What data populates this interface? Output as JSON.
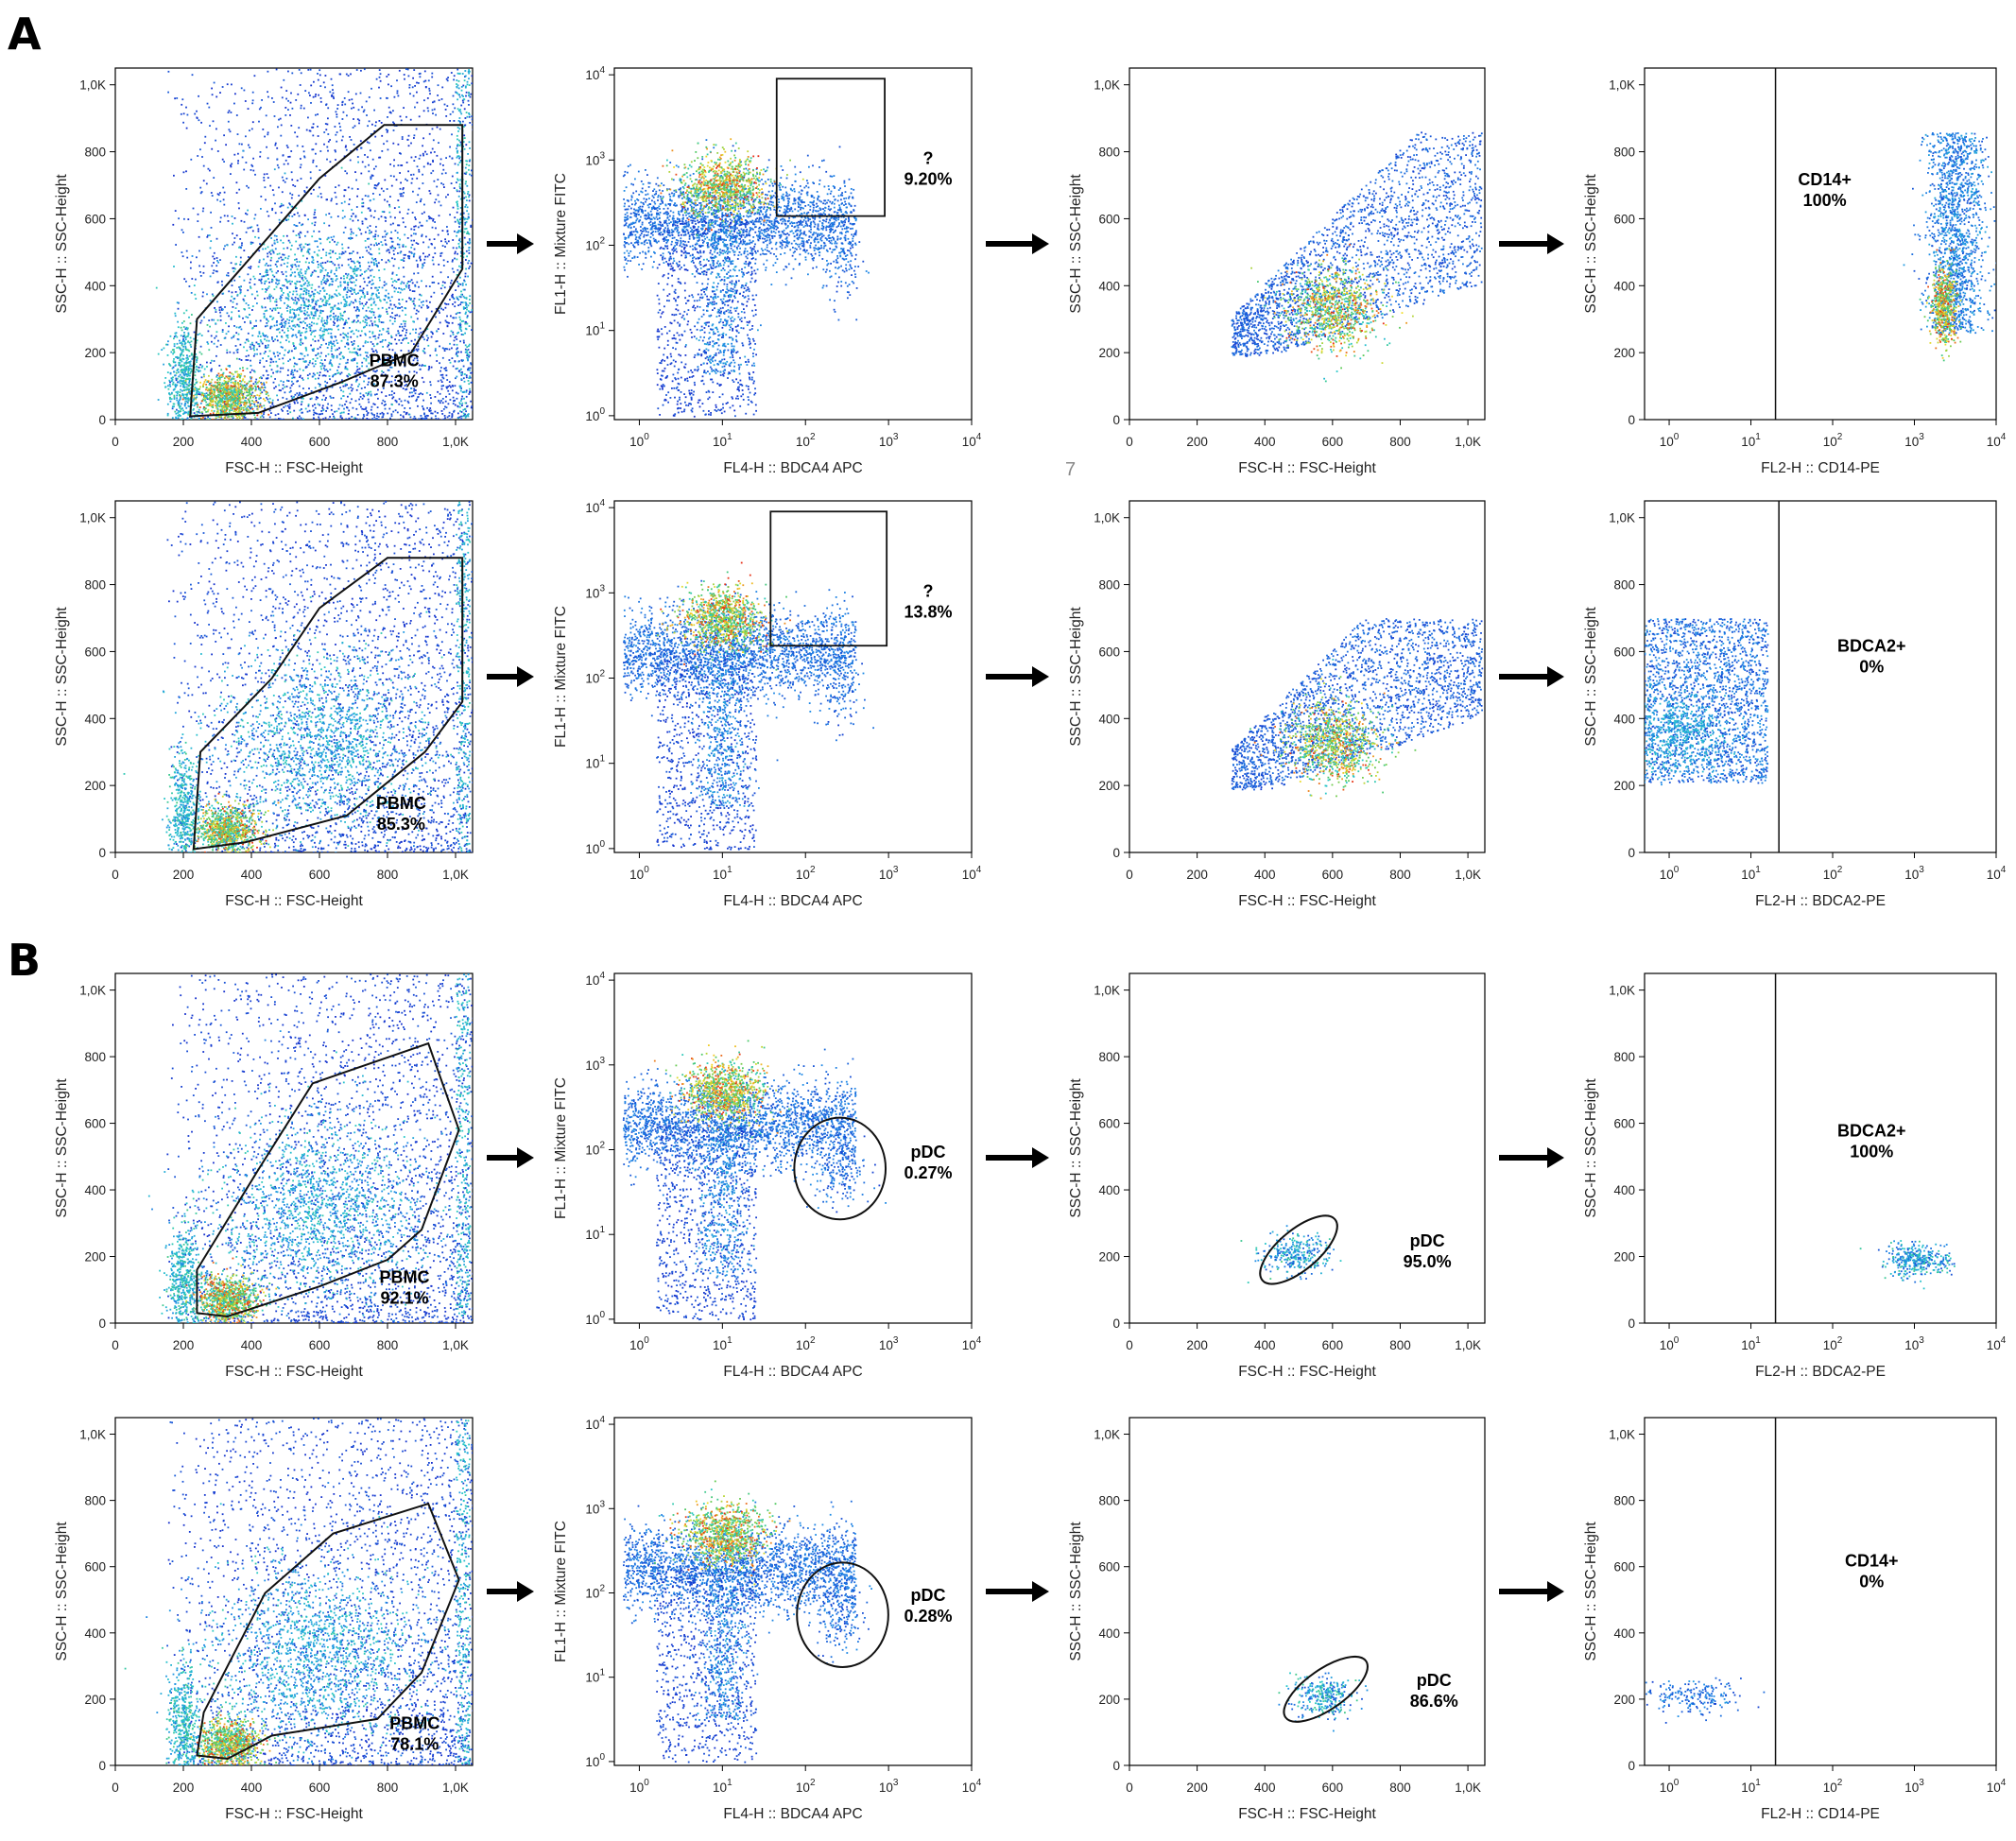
{
  "figure": {
    "panel_labels": [
      "A",
      "B"
    ],
    "page_number": "7"
  },
  "chart_data": [
    {
      "id": "A1-1",
      "type": "scatter",
      "subtype": "flow-density",
      "xscale": "linear",
      "yscale": "linear",
      "xlim": [
        0,
        1050
      ],
      "ylim": [
        0,
        1050
      ],
      "xticks": [
        "0",
        "200",
        "400",
        "600",
        "800",
        "1,0K"
      ],
      "yticks": [
        "0",
        "200",
        "400",
        "600",
        "800",
        "1,0K"
      ],
      "xlabel": "FSC-H :: FSC-Height",
      "ylabel": "SSC-H :: SSC-Height",
      "gate": {
        "shape": "polygon",
        "points": [
          [
            220,
            10
          ],
          [
            240,
            300
          ],
          [
            600,
            720
          ],
          [
            790,
            880
          ],
          [
            1020,
            880
          ],
          [
            1020,
            450
          ],
          [
            870,
            200
          ],
          [
            660,
            110
          ],
          [
            420,
            20
          ]
        ]
      },
      "annotation": [
        "PBMC",
        "87.3%"
      ],
      "annotation_at": [
        820,
        160
      ]
    },
    {
      "id": "A1-2",
      "type": "scatter",
      "subtype": "flow-density",
      "xscale": "log",
      "yscale": "log",
      "xlim": [
        0.5,
        10000
      ],
      "ylim": [
        0.9,
        12000
      ],
      "xticks": [
        "10^0",
        "10^1",
        "10^2",
        "10^3",
        "10^4"
      ],
      "yticks": [
        "10^0",
        "10^1",
        "10^2",
        "10^3",
        "10^4"
      ],
      "xlabel": "FL4-H :: BDCA4 APC",
      "ylabel": "FL1-H :: Mixture FITC",
      "gate": {
        "shape": "rectangle",
        "x": [
          45,
          900
        ],
        "y": [
          220,
          9000
        ]
      },
      "annotation": [
        "?",
        "9.20%"
      ],
      "annotation_at": [
        3000,
        900
      ]
    },
    {
      "id": "A1-3",
      "type": "scatter",
      "subtype": "flow-density",
      "xscale": "linear",
      "yscale": "linear",
      "xlim": [
        0,
        1050
      ],
      "ylim": [
        0,
        1050
      ],
      "xticks": [
        "0",
        "200",
        "400",
        "600",
        "800",
        "1,0K"
      ],
      "yticks": [
        "0",
        "200",
        "400",
        "600",
        "800",
        "1,0K"
      ],
      "xlabel": "FSC-H :: FSC-Height",
      "ylabel": "SSC-H :: SSC-Height"
    },
    {
      "id": "A1-4",
      "type": "scatter",
      "subtype": "flow-density",
      "xscale": "log",
      "yscale": "linear",
      "xlim": [
        0.5,
        10000
      ],
      "ylim": [
        0,
        1050
      ],
      "xticks": [
        "10^0",
        "10^1",
        "10^2",
        "10^3",
        "10^4"
      ],
      "yticks": [
        "0",
        "200",
        "400",
        "600",
        "800",
        "1,0K"
      ],
      "xlabel": "FL2-H :: CD14-PE",
      "ylabel": "SSC-H :: SSC-Height",
      "gate": {
        "shape": "vertical-line",
        "x": 20
      },
      "annotation": [
        "CD14+",
        "100%"
      ],
      "annotation_at": [
        80,
        700
      ]
    },
    {
      "id": "A2-1",
      "type": "scatter",
      "subtype": "flow-density",
      "xscale": "linear",
      "yscale": "linear",
      "xlim": [
        0,
        1050
      ],
      "ylim": [
        0,
        1050
      ],
      "xticks": [
        "0",
        "200",
        "400",
        "600",
        "800",
        "1,0K"
      ],
      "yticks": [
        "0",
        "200",
        "400",
        "600",
        "800",
        "1,0K"
      ],
      "xlabel": "FSC-H :: FSC-Height",
      "ylabel": "SSC-H :: SSC-Height",
      "gate": {
        "shape": "polygon",
        "points": [
          [
            230,
            10
          ],
          [
            250,
            300
          ],
          [
            460,
            520
          ],
          [
            600,
            730
          ],
          [
            800,
            880
          ],
          [
            1020,
            880
          ],
          [
            1020,
            450
          ],
          [
            910,
            300
          ],
          [
            680,
            110
          ],
          [
            380,
            30
          ]
        ]
      },
      "annotation": [
        "PBMC",
        "85.3%"
      ],
      "annotation_at": [
        840,
        130
      ]
    },
    {
      "id": "A2-2",
      "type": "scatter",
      "subtype": "flow-density",
      "xscale": "log",
      "yscale": "log",
      "xlim": [
        0.5,
        10000
      ],
      "ylim": [
        0.9,
        12000
      ],
      "xticks": [
        "10^0",
        "10^1",
        "10^2",
        "10^3",
        "10^4"
      ],
      "yticks": [
        "10^0",
        "10^1",
        "10^2",
        "10^3",
        "10^4"
      ],
      "xlabel": "FL4-H :: BDCA4 APC",
      "ylabel": "FL1-H :: Mixture FITC",
      "gate": {
        "shape": "rectangle",
        "x": [
          38,
          950
        ],
        "y": [
          240,
          9000
        ]
      },
      "annotation": [
        "?",
        "13.8%"
      ],
      "annotation_at": [
        3000,
        900
      ]
    },
    {
      "id": "A2-3",
      "type": "scatter",
      "subtype": "flow-density",
      "xscale": "linear",
      "yscale": "linear",
      "xlim": [
        0,
        1050
      ],
      "ylim": [
        0,
        1050
      ],
      "xticks": [
        "0",
        "200",
        "400",
        "600",
        "800",
        "1,0K"
      ],
      "yticks": [
        "0",
        "200",
        "400",
        "600",
        "800",
        "1,0K"
      ],
      "xlabel": "FSC-H :: FSC-Height",
      "ylabel": "SSC-H :: SSC-Height"
    },
    {
      "id": "A2-4",
      "type": "scatter",
      "subtype": "flow-density",
      "xscale": "log",
      "yscale": "linear",
      "xlim": [
        0.5,
        10000
      ],
      "ylim": [
        0,
        1050
      ],
      "xticks": [
        "10^0",
        "10^1",
        "10^2",
        "10^3",
        "10^4"
      ],
      "yticks": [
        "0",
        "200",
        "400",
        "600",
        "800",
        "1,0K"
      ],
      "xlabel": "FL2-H :: BDCA2-PE",
      "ylabel": "SSC-H :: SSC-Height",
      "gate": {
        "shape": "vertical-line",
        "x": 22
      },
      "annotation": [
        "BDCA2+",
        "0%"
      ],
      "annotation_at": [
        300,
        600
      ]
    },
    {
      "id": "B1-1",
      "type": "scatter",
      "subtype": "flow-density",
      "xscale": "linear",
      "yscale": "linear",
      "xlim": [
        0,
        1050
      ],
      "ylim": [
        0,
        1050
      ],
      "xticks": [
        "0",
        "200",
        "400",
        "600",
        "800",
        "1,0K"
      ],
      "yticks": [
        "0",
        "200",
        "400",
        "600",
        "800",
        "1,0K"
      ],
      "xlabel": "FSC-H :: FSC-Height",
      "ylabel": "SSC-H :: SSC-Height",
      "gate": {
        "shape": "polygon",
        "points": [
          [
            240,
            30
          ],
          [
            240,
            160
          ],
          [
            420,
            460
          ],
          [
            580,
            720
          ],
          [
            920,
            840
          ],
          [
            1010,
            580
          ],
          [
            900,
            280
          ],
          [
            800,
            190
          ],
          [
            600,
            110
          ],
          [
            330,
            20
          ]
        ]
      },
      "annotation": [
        "PBMC",
        "92.1%"
      ],
      "annotation_at": [
        850,
        120
      ]
    },
    {
      "id": "B1-2",
      "type": "scatter",
      "subtype": "flow-density",
      "xscale": "log",
      "yscale": "log",
      "xlim": [
        0.5,
        10000
      ],
      "ylim": [
        0.9,
        12000
      ],
      "xticks": [
        "10^0",
        "10^1",
        "10^2",
        "10^3",
        "10^4"
      ],
      "yticks": [
        "10^0",
        "10^1",
        "10^2",
        "10^3",
        "10^4"
      ],
      "xlabel": "FL4-H :: BDCA4 APC",
      "ylabel": "FL1-H :: Mixture FITC",
      "gate": {
        "shape": "ellipse",
        "cx": 260,
        "cy": 60,
        "rx_dec": 0.55,
        "ry_dec": 0.6
      },
      "annotation": [
        "pDC",
        "0.27%"
      ],
      "annotation_at": [
        3000,
        80
      ]
    },
    {
      "id": "B1-3",
      "type": "scatter",
      "subtype": "flow-density",
      "xscale": "linear",
      "yscale": "linear",
      "xlim": [
        0,
        1050
      ],
      "ylim": [
        0,
        1050
      ],
      "xticks": [
        "0",
        "200",
        "400",
        "600",
        "800",
        "1,0K"
      ],
      "yticks": [
        "0",
        "200",
        "400",
        "600",
        "800",
        "1,0K"
      ],
      "xlabel": "FSC-H :: FSC-Height",
      "ylabel": "SSC-H :: SSC-Height",
      "gate": {
        "shape": "ellipse",
        "cx": 500,
        "cy": 220,
        "rx": 140,
        "ry": 60,
        "rot": -40
      },
      "annotation": [
        "pDC",
        "95.0%"
      ],
      "annotation_at": [
        880,
        230
      ]
    },
    {
      "id": "B1-4",
      "type": "scatter",
      "subtype": "flow-density",
      "xscale": "log",
      "yscale": "linear",
      "xlim": [
        0.5,
        10000
      ],
      "ylim": [
        0,
        1050
      ],
      "xticks": [
        "10^0",
        "10^1",
        "10^2",
        "10^3",
        "10^4"
      ],
      "yticks": [
        "0",
        "200",
        "400",
        "600",
        "800",
        "1,0K"
      ],
      "xlabel": "FL2-H :: BDCA2-PE",
      "ylabel": "SSC-H :: SSC-Height",
      "gate": {
        "shape": "vertical-line",
        "x": 20
      },
      "annotation": [
        "BDCA2+",
        "100%"
      ],
      "annotation_at": [
        300,
        560
      ]
    },
    {
      "id": "B2-1",
      "type": "scatter",
      "subtype": "flow-density",
      "xscale": "linear",
      "yscale": "linear",
      "xlim": [
        0,
        1050
      ],
      "ylim": [
        0,
        1050
      ],
      "xticks": [
        "0",
        "200",
        "400",
        "600",
        "800",
        "1,0K"
      ],
      "yticks": [
        "0",
        "200",
        "400",
        "600",
        "800",
        "1,0K"
      ],
      "xlabel": "FSC-H :: FSC-Height",
      "ylabel": "SSC-H :: SSC-Height",
      "gate": {
        "shape": "polygon",
        "points": [
          [
            240,
            30
          ],
          [
            260,
            160
          ],
          [
            440,
            520
          ],
          [
            640,
            700
          ],
          [
            920,
            790
          ],
          [
            1010,
            560
          ],
          [
            900,
            280
          ],
          [
            770,
            140
          ],
          [
            460,
            90
          ],
          [
            330,
            20
          ]
        ]
      },
      "annotation": [
        "PBMC",
        "78.1%"
      ],
      "annotation_at": [
        880,
        110
      ]
    },
    {
      "id": "B2-2",
      "type": "scatter",
      "subtype": "flow-density",
      "xscale": "log",
      "yscale": "log",
      "xlim": [
        0.5,
        10000
      ],
      "ylim": [
        0.9,
        12000
      ],
      "xticks": [
        "10^0",
        "10^1",
        "10^2",
        "10^3",
        "10^4"
      ],
      "yticks": [
        "10^0",
        "10^1",
        "10^2",
        "10^3",
        "10^4"
      ],
      "xlabel": "FL4-H :: BDCA4 APC",
      "ylabel": "FL1-H :: Mixture FITC",
      "gate": {
        "shape": "ellipse",
        "cx": 280,
        "cy": 55,
        "rx_dec": 0.55,
        "ry_dec": 0.62
      },
      "annotation": [
        "pDC",
        "0.28%"
      ],
      "annotation_at": [
        3000,
        80
      ]
    },
    {
      "id": "B2-3",
      "type": "scatter",
      "subtype": "flow-density",
      "xscale": "linear",
      "yscale": "linear",
      "xlim": [
        0,
        1050
      ],
      "ylim": [
        0,
        1050
      ],
      "xticks": [
        "0",
        "200",
        "400",
        "600",
        "800",
        "1,0K"
      ],
      "yticks": [
        "0",
        "200",
        "400",
        "600",
        "800",
        "1,0K"
      ],
      "xlabel": "FSC-H :: FSC-Height",
      "ylabel": "SSC-H :: SSC-Height",
      "gate": {
        "shape": "ellipse",
        "cx": 580,
        "cy": 230,
        "rx": 145,
        "ry": 60,
        "rot": -35
      },
      "annotation": [
        "pDC",
        "86.6%"
      ],
      "annotation_at": [
        900,
        240
      ]
    },
    {
      "id": "B2-4",
      "type": "scatter",
      "subtype": "flow-density",
      "xscale": "log",
      "yscale": "linear",
      "xlim": [
        0.5,
        10000
      ],
      "ylim": [
        0,
        1050
      ],
      "xticks": [
        "10^0",
        "10^1",
        "10^2",
        "10^3",
        "10^4"
      ],
      "yticks": [
        "0",
        "200",
        "400",
        "600",
        "800",
        "1,0K"
      ],
      "xlabel": "FL2-H :: CD14-PE",
      "ylabel": "SSC-H :: SSC-Height",
      "gate": {
        "shape": "vertical-line",
        "x": 20
      },
      "annotation": [
        "CD14+",
        "0%"
      ],
      "annotation_at": [
        300,
        600
      ]
    }
  ]
}
